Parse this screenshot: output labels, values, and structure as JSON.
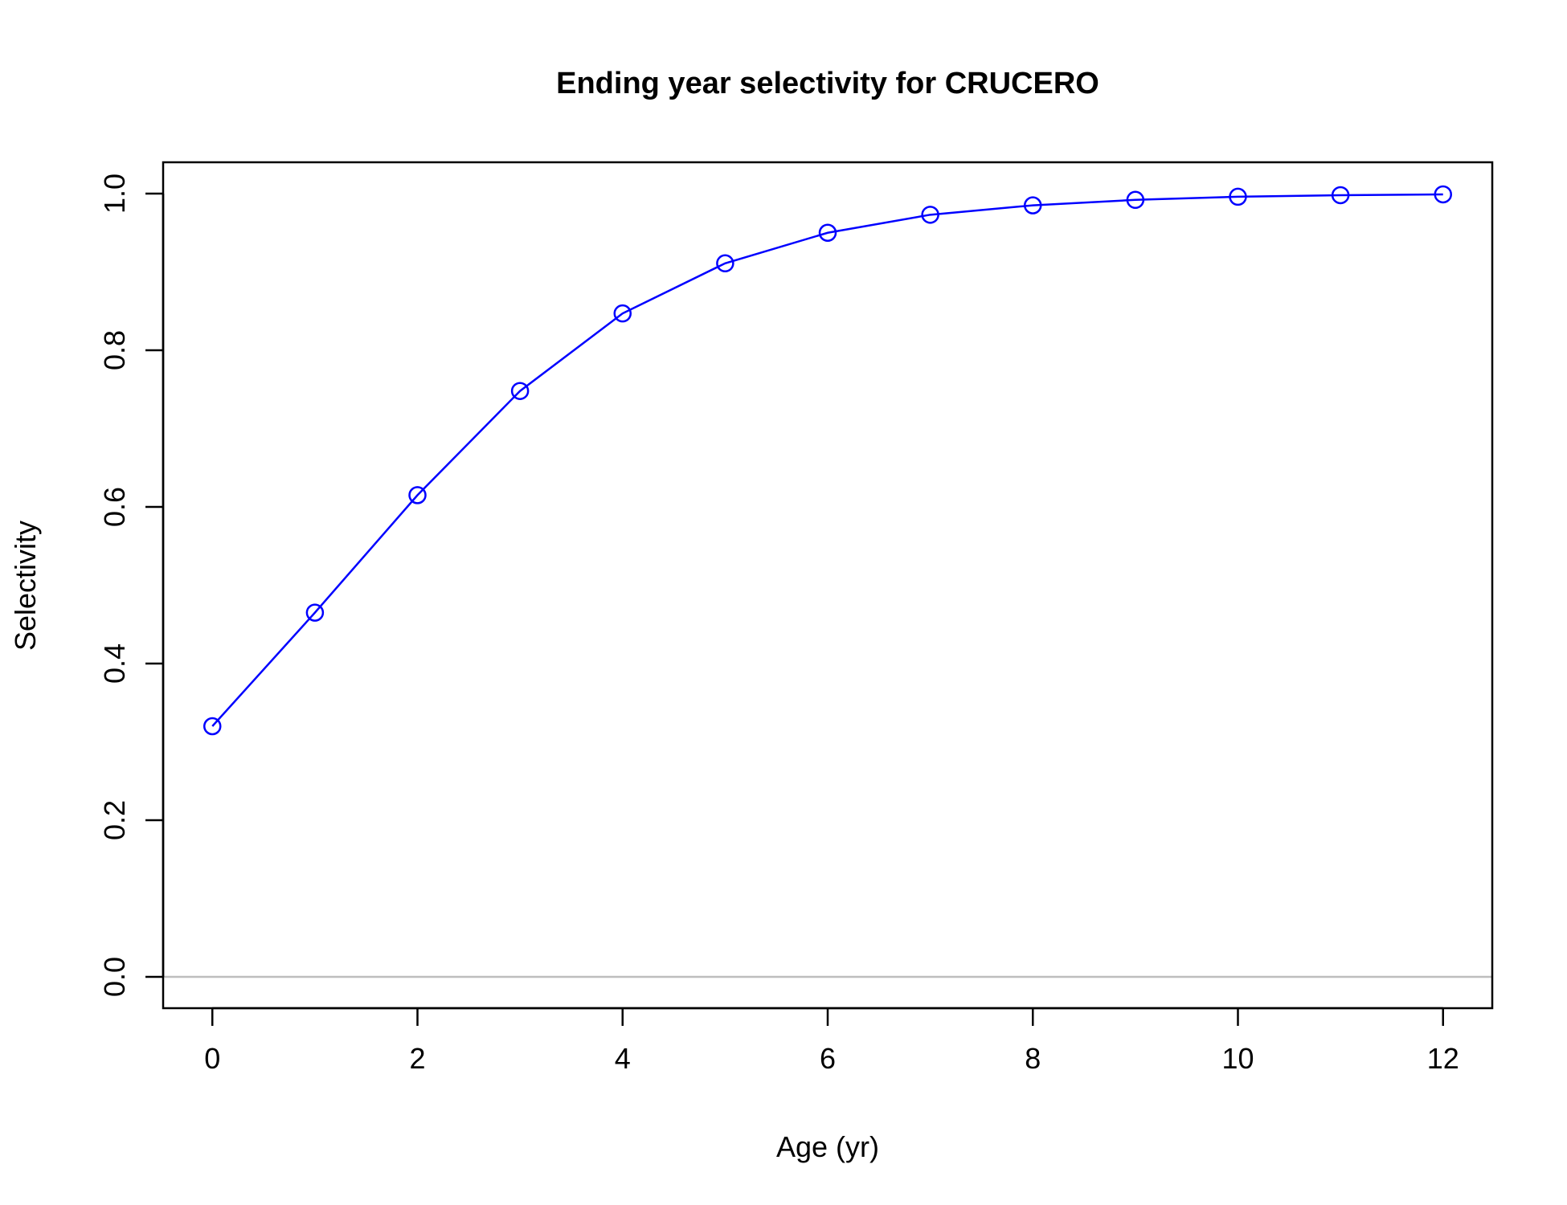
{
  "chart_data": {
    "type": "line",
    "title": "Ending year selectivity for CRUCERO",
    "xlabel": "Age (yr)",
    "ylabel": "Selectivity",
    "x": [
      0,
      1,
      2,
      3,
      4,
      5,
      6,
      7,
      8,
      9,
      10,
      11,
      12
    ],
    "series": [
      {
        "values": [
          0.32,
          0.465,
          0.615,
          0.748,
          0.847,
          0.911,
          0.95,
          0.973,
          0.985,
          0.992,
          0.996,
          0.998,
          0.999
        ],
        "color": "#0000ff",
        "marker": "open-circle"
      }
    ],
    "xlim": [
      -0.48,
      12.48
    ],
    "ylim": [
      -0.04,
      1.04
    ],
    "x_ticks": [
      0,
      2,
      4,
      6,
      8,
      10,
      12
    ],
    "y_ticks": [
      0.0,
      0.2,
      0.4,
      0.6,
      0.8,
      1.0
    ],
    "x_tick_labels": [
      "0",
      "2",
      "4",
      "6",
      "8",
      "10",
      "12"
    ],
    "y_tick_labels": [
      "0.0",
      "0.2",
      "0.4",
      "0.6",
      "0.8",
      "1.0"
    ],
    "reference_line": {
      "y": 0,
      "color": "#bebebe"
    },
    "grid": false,
    "legend": "none"
  }
}
